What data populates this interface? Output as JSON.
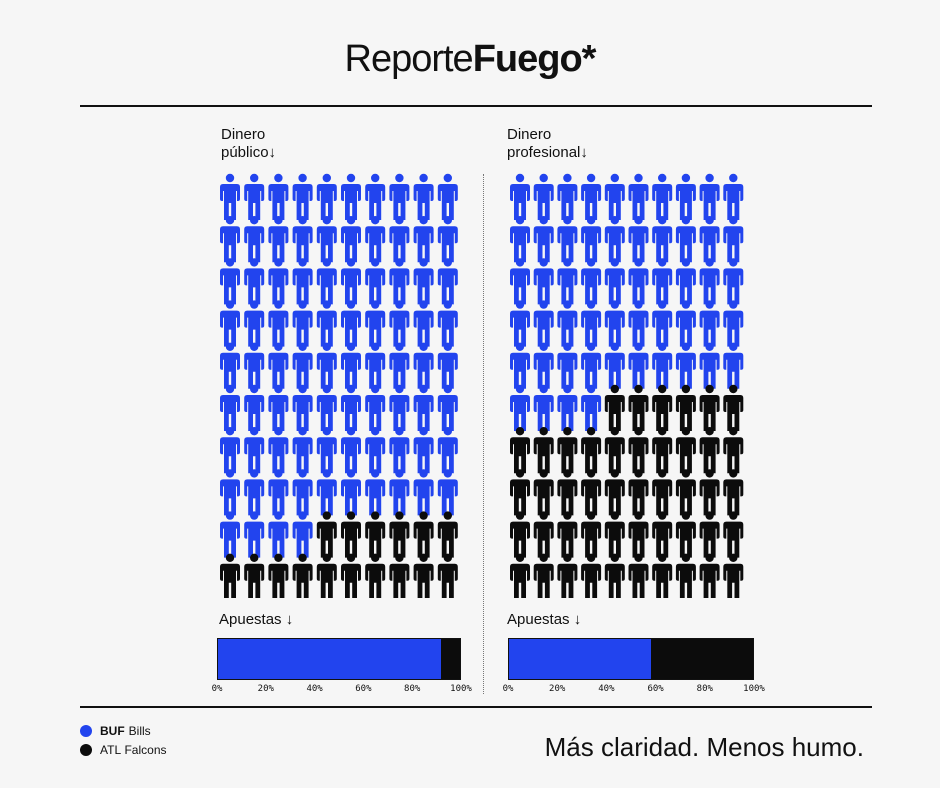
{
  "title": {
    "light": "Reporte",
    "bold": "Fuego*"
  },
  "colors": {
    "buf": "#2244ee",
    "atl": "#0c0c0c"
  },
  "panels": [
    {
      "label_line1": "Dinero",
      "label_line2": "público↓",
      "bets_label": "Apuestas ↓"
    },
    {
      "label_line1": "Dinero",
      "label_line2": "profesional↓",
      "bets_label": "Apuestas ↓"
    }
  ],
  "chart_data": [
    {
      "type": "pictogram",
      "title": "Dinero público",
      "total_figures": 100,
      "series": [
        {
          "name": "BUF Bills",
          "count": 84,
          "color": "#2244ee"
        },
        {
          "name": "ATL Falcons",
          "count": 16,
          "color": "#0c0c0c"
        }
      ]
    },
    {
      "type": "pictogram",
      "title": "Dinero profesional",
      "total_figures": 100,
      "series": [
        {
          "name": "BUF Bills",
          "count": 54,
          "color": "#2244ee"
        },
        {
          "name": "ATL Falcons",
          "count": 46,
          "color": "#0c0c0c"
        }
      ]
    },
    {
      "type": "bar",
      "title": "Apuestas",
      "stacked": true,
      "orientation": "horizontal",
      "xlim": [
        0,
        100
      ],
      "tick_labels": [
        "0%",
        "20%",
        "40%",
        "60%",
        "80%",
        "100%"
      ],
      "series": [
        {
          "name": "BUF Bills",
          "values": [
            92
          ]
        },
        {
          "name": "ATL Falcons",
          "values": [
            8
          ]
        }
      ]
    },
    {
      "type": "bar",
      "title": "Apuestas",
      "stacked": true,
      "orientation": "horizontal",
      "xlim": [
        0,
        100
      ],
      "tick_labels": [
        "0%",
        "20%",
        "40%",
        "60%",
        "80%",
        "100%"
      ],
      "series": [
        {
          "name": "BUF Bills",
          "values": [
            58
          ]
        },
        {
          "name": "ATL Falcons",
          "values": [
            42
          ]
        }
      ]
    }
  ],
  "legend": [
    {
      "abbr": "BUF",
      "name": "Bills",
      "color": "#2244ee"
    },
    {
      "abbr": "ATL",
      "name": "Falcons",
      "color": "#0c0c0c"
    }
  ],
  "tagline": "Más claridad. Menos humo."
}
